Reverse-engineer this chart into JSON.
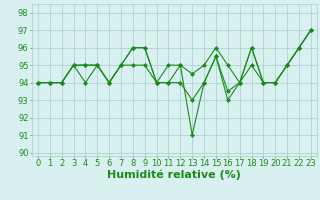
{
  "series": [
    {
      "x": [
        0,
        1,
        2,
        3,
        4,
        5,
        6,
        7,
        8,
        9,
        10,
        11,
        12,
        13,
        14,
        15,
        16,
        17,
        18,
        19,
        20,
        21,
        22,
        23
      ],
      "y": [
        94,
        94,
        94,
        95,
        95,
        95,
        94,
        95,
        96,
        96,
        94,
        95,
        95,
        91,
        94,
        95.5,
        93,
        94,
        96,
        94,
        94,
        95,
        96,
        97
      ]
    },
    {
      "x": [
        0,
        1,
        2,
        3,
        4,
        5,
        6,
        7,
        8,
        9,
        10,
        11,
        12,
        13,
        14,
        15,
        16,
        17,
        18,
        19,
        20,
        21,
        22,
        23
      ],
      "y": [
        94,
        94,
        94,
        95,
        95,
        95,
        94,
        95,
        96,
        96,
        94,
        94,
        94,
        93,
        94,
        95.5,
        93.5,
        94,
        95,
        94,
        94,
        95,
        96,
        97
      ]
    },
    {
      "x": [
        0,
        1,
        2,
        3,
        4,
        5,
        6,
        7,
        8,
        9,
        10,
        11,
        12,
        13,
        14,
        15,
        16,
        17,
        18,
        19,
        20,
        21,
        22,
        23
      ],
      "y": [
        94,
        94,
        94,
        95,
        94,
        95,
        94,
        95,
        95,
        95,
        94,
        94,
        95,
        94.5,
        95,
        96,
        95,
        94,
        96,
        94,
        94,
        95,
        96,
        97
      ]
    }
  ],
  "line_color": "#1a8c1a",
  "marker": "D",
  "marker_size": 2,
  "bg_color": "#d8f0f0",
  "grid_color": "#aacccc",
  "xlabel": "Humidité relative (%)",
  "xlabel_color": "#1a8c1a",
  "xlabel_fontsize": 8,
  "xlim": [
    -0.5,
    23.5
  ],
  "ylim": [
    89.8,
    98.5
  ],
  "yticks": [
    90,
    91,
    92,
    93,
    94,
    95,
    96,
    97,
    98
  ],
  "xticks": [
    0,
    1,
    2,
    3,
    4,
    5,
    6,
    7,
    8,
    9,
    10,
    11,
    12,
    13,
    14,
    15,
    16,
    17,
    18,
    19,
    20,
    21,
    22,
    23
  ],
  "tick_fontsize": 6,
  "tick_color": "#1a8c1a",
  "figsize": [
    3.2,
    2.0
  ],
  "dpi": 100
}
